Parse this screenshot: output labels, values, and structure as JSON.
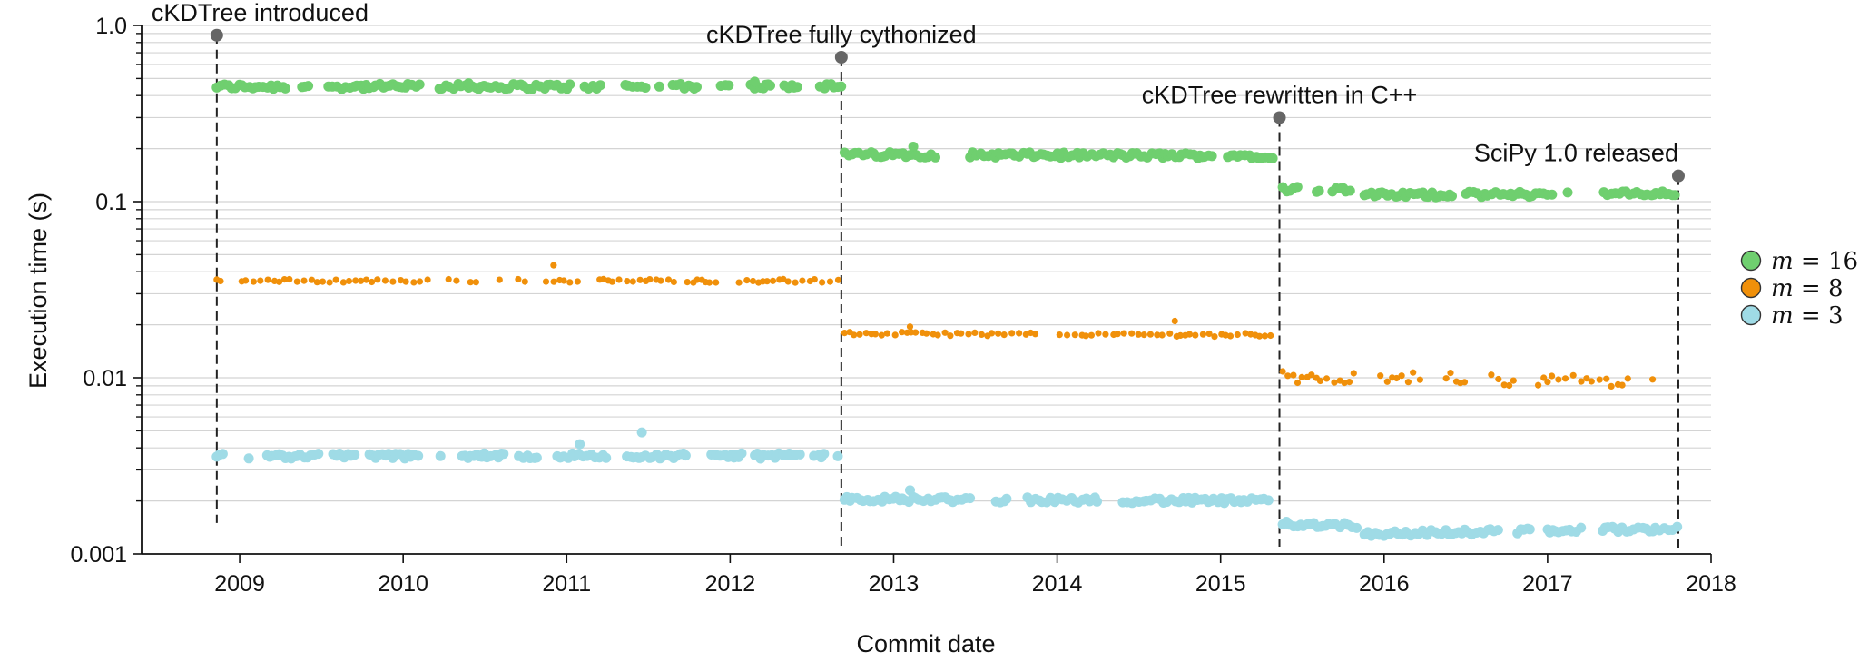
{
  "chart_data": {
    "type": "scatter",
    "xlabel": "Commit date",
    "ylabel": "Execution time (s)",
    "yscale": "log",
    "ylim": [
      0.001,
      1.0
    ],
    "xlim": [
      2008.4,
      2018.0
    ],
    "y_tick_labels": [
      "0.001",
      "0.01",
      "0.1",
      "1.0"
    ],
    "x_tick_labels": [
      "2009",
      "2010",
      "2011",
      "2012",
      "2013",
      "2014",
      "2015",
      "2016",
      "2017",
      "2018"
    ],
    "grid": "horizontal-minor",
    "legend": {
      "placement": "right",
      "entries": [
        {
          "var": "m",
          "eq": " = 16",
          "color": "#6fcf6f"
        },
        {
          "var": "m",
          "eq": " = 8",
          "color": "#f0900a"
        },
        {
          "var": "m",
          "eq": " = 3",
          "color": "#9fdbe6"
        }
      ]
    },
    "annotations": [
      {
        "label": "cKDTree introduced",
        "x": 2008.86,
        "y": 0.88,
        "line_bottom": 0.0015
      },
      {
        "label": "cKDTree fully cythonized",
        "x": 2012.68,
        "y": 0.66,
        "line_bottom": 0.0011
      },
      {
        "label": "cKDTree rewritten in C++",
        "x": 2015.36,
        "y": 0.3,
        "line_bottom": 0.0011
      },
      {
        "label": "SciPy 1.0 released",
        "x": 2017.8,
        "y": 0.14,
        "line_bottom": 0.001
      }
    ],
    "series": [
      {
        "name": "m = 16",
        "color": "#6fcf6f",
        "segments": [
          {
            "x_start": 2008.86,
            "x_end": 2012.68,
            "y_start": 0.45,
            "y_end": 0.45,
            "outliers": [
              {
                "x": 2010.4,
                "y": 0.47
              },
              {
                "x": 2012.15,
                "y": 0.48
              }
            ]
          },
          {
            "x_start": 2012.7,
            "x_end": 2015.34,
            "y_start": 0.185,
            "y_end": 0.182,
            "outliers": [
              {
                "x": 2013.12,
                "y": 0.205
              }
            ]
          },
          {
            "x_start": 2015.38,
            "x_end": 2015.85,
            "y_start": 0.118,
            "y_end": 0.117,
            "outliers": []
          },
          {
            "x_start": 2015.88,
            "x_end": 2017.8,
            "y_start": 0.109,
            "y_end": 0.111,
            "outliers": []
          }
        ]
      },
      {
        "name": "m = 8",
        "color": "#f0900a",
        "segments": [
          {
            "x_start": 2008.86,
            "x_end": 2012.68,
            "y_start": 0.0355,
            "y_end": 0.0355,
            "outliers": [
              {
                "x": 2010.92,
                "y": 0.0435
              }
            ]
          },
          {
            "x_start": 2012.7,
            "x_end": 2015.34,
            "y_start": 0.0178,
            "y_end": 0.0175,
            "outliers": [
              {
                "x": 2013.1,
                "y": 0.0195
              },
              {
                "x": 2014.72,
                "y": 0.021
              }
            ]
          },
          {
            "x_start": 2015.38,
            "x_end": 2017.8,
            "y_start": 0.0101,
            "y_end": 0.0095,
            "outliers": []
          }
        ]
      },
      {
        "name": "m = 3",
        "color": "#9fdbe6",
        "segments": [
          {
            "x_start": 2008.86,
            "x_end": 2012.68,
            "y_start": 0.0036,
            "y_end": 0.0036,
            "outliers": [
              {
                "x": 2011.46,
                "y": 0.0049
              },
              {
                "x": 2011.08,
                "y": 0.0042
              }
            ]
          },
          {
            "x_start": 2012.7,
            "x_end": 2015.34,
            "y_start": 0.00205,
            "y_end": 0.002,
            "outliers": [
              {
                "x": 2013.1,
                "y": 0.0023
              }
            ]
          },
          {
            "x_start": 2015.38,
            "x_end": 2015.85,
            "y_start": 0.00148,
            "y_end": 0.00145,
            "outliers": []
          },
          {
            "x_start": 2015.88,
            "x_end": 2017.8,
            "y_start": 0.0013,
            "y_end": 0.0014,
            "outliers": []
          }
        ]
      }
    ]
  }
}
